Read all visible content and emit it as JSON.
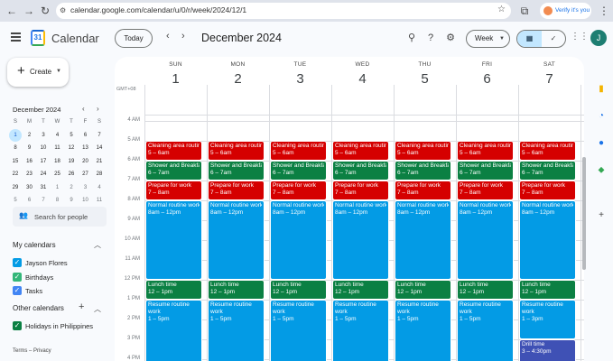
{
  "browser": {
    "url": "calendar.google.com/calendar/u/0/r/week/2024/12/1",
    "verify_label": "Verify it's you"
  },
  "app": {
    "name": "Calendar",
    "logo_text": "31",
    "today_label": "Today",
    "month_title": "December 2024",
    "view_label": "Week",
    "avatar_letter": "J"
  },
  "sidebar": {
    "create_label": "Create",
    "mini_title": "December 2024",
    "mini_dow": [
      "S",
      "M",
      "T",
      "W",
      "T",
      "F",
      "S"
    ],
    "mini_weeks": [
      [
        "1",
        "2",
        "3",
        "4",
        "5",
        "6",
        "7"
      ],
      [
        "8",
        "9",
        "10",
        "11",
        "12",
        "13",
        "14"
      ],
      [
        "15",
        "16",
        "17",
        "18",
        "19",
        "20",
        "21"
      ],
      [
        "22",
        "23",
        "24",
        "25",
        "26",
        "27",
        "28"
      ],
      [
        "29",
        "30",
        "31",
        "1",
        "2",
        "3",
        "4"
      ],
      [
        "5",
        "6",
        "7",
        "8",
        "9",
        "10",
        "11"
      ]
    ],
    "search_people": "Search for people",
    "my_calendars_title": "My calendars",
    "my_calendars": [
      {
        "label": "Jayson Flores",
        "color": "#039be5"
      },
      {
        "label": "Birthdays",
        "color": "#33b679"
      },
      {
        "label": "Tasks",
        "color": "#4285f4"
      }
    ],
    "other_calendars_title": "Other calendars",
    "other_calendars": [
      {
        "label": "Holidays in Philippines",
        "color": "#0b8043"
      }
    ],
    "terms": "Terms – Privacy"
  },
  "week": {
    "timezone": "GMT+08",
    "days": [
      {
        "dow": "SUN",
        "num": "1"
      },
      {
        "dow": "MON",
        "num": "2"
      },
      {
        "dow": "TUE",
        "num": "3"
      },
      {
        "dow": "WED",
        "num": "4"
      },
      {
        "dow": "THU",
        "num": "5"
      },
      {
        "dow": "FRI",
        "num": "6"
      },
      {
        "dow": "SAT",
        "num": "7"
      }
    ],
    "hours": [
      "4 AM",
      "5 AM",
      "6 AM",
      "7 AM",
      "8 AM",
      "9 AM",
      "10 AM",
      "11 AM",
      "12 PM",
      "1 PM",
      "2 PM",
      "3 PM",
      "4 PM"
    ],
    "events": [
      {
        "title": "Cleaning area routine",
        "time": "5 – 6am",
        "start": 5,
        "end": 6,
        "color": "#d50000",
        "days": [
          0,
          1,
          2,
          3,
          4,
          5,
          6
        ]
      },
      {
        "title": "Shower and Breakfast",
        "time": "6 – 7am",
        "start": 6,
        "end": 7,
        "color": "#0b8043",
        "days": [
          0,
          1,
          2,
          3,
          4,
          5,
          6
        ]
      },
      {
        "title": "Prepare for work",
        "time": "7 – 8am",
        "start": 7,
        "end": 8,
        "color": "#d50000",
        "days": [
          0,
          1,
          2,
          3,
          4,
          5,
          6
        ]
      },
      {
        "title": "Normal routine work",
        "time": "8am – 12pm",
        "start": 8,
        "end": 12,
        "color": "#039be5",
        "days": [
          0,
          1,
          2,
          3,
          4,
          5,
          6
        ]
      },
      {
        "title": "Lunch time",
        "time": "12 – 1pm",
        "start": 12,
        "end": 13,
        "color": "#0b8043",
        "days": [
          0,
          1,
          2,
          3,
          4,
          5,
          6
        ]
      },
      {
        "title": "Resume routine work",
        "time": "1 – 5pm",
        "start": 13,
        "end": 17,
        "color": "#039be5",
        "days": [
          0,
          1,
          2,
          3,
          4,
          5
        ]
      },
      {
        "title": "Resume routine work",
        "time": "1 – 3pm",
        "start": 13,
        "end": 15,
        "color": "#039be5",
        "days": [
          6
        ]
      },
      {
        "title": "Drill time",
        "time": "3 – 4:30pm",
        "start": 15,
        "end": 16.5,
        "color": "#3f51b5",
        "days": [
          6
        ]
      }
    ]
  },
  "colors": {
    "accent": "#0b57d0",
    "selected": "#c2e7ff"
  }
}
